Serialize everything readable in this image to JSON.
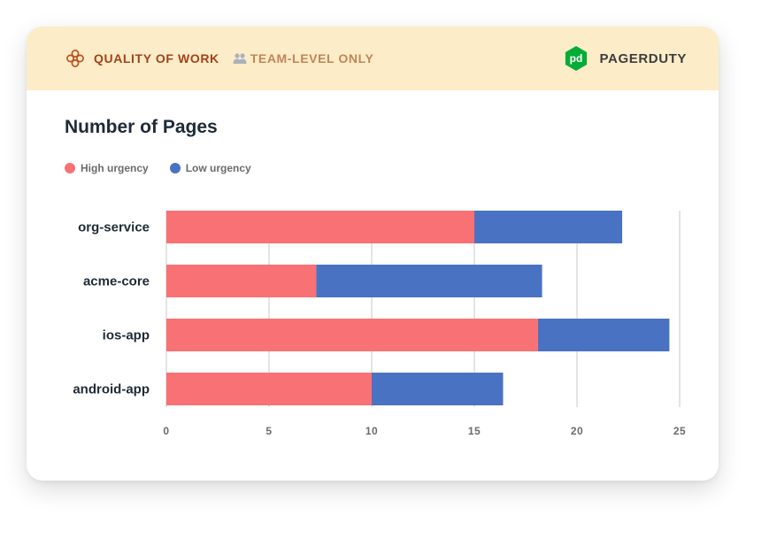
{
  "header": {
    "category_label": "QUALITY OF WORK",
    "category_icon": "flower-icon",
    "scope_label": "TEAM-LEVEL ONLY",
    "scope_icon": "team-icon",
    "brand_label": "PAGERDUTY",
    "brand_icon_text": "pd",
    "brand_color": "#06ac38"
  },
  "chart_data": {
    "type": "bar",
    "orientation": "horizontal",
    "stacked": true,
    "title": "Number of Pages",
    "categories": [
      "org-service",
      "acme-core",
      "ios-app",
      "android-app"
    ],
    "series": [
      {
        "name": "High urgency",
        "color": "#f87174",
        "values": [
          15,
          7.3,
          18.1,
          10
        ]
      },
      {
        "name": "Low urgency",
        "color": "#4a72c3",
        "values": [
          7.2,
          11,
          6.4,
          6.4
        ]
      }
    ],
    "xlim": [
      0,
      25
    ],
    "xticks": [
      0,
      5,
      10,
      15,
      20,
      25
    ],
    "grid": true,
    "legend_position": "top-left"
  }
}
